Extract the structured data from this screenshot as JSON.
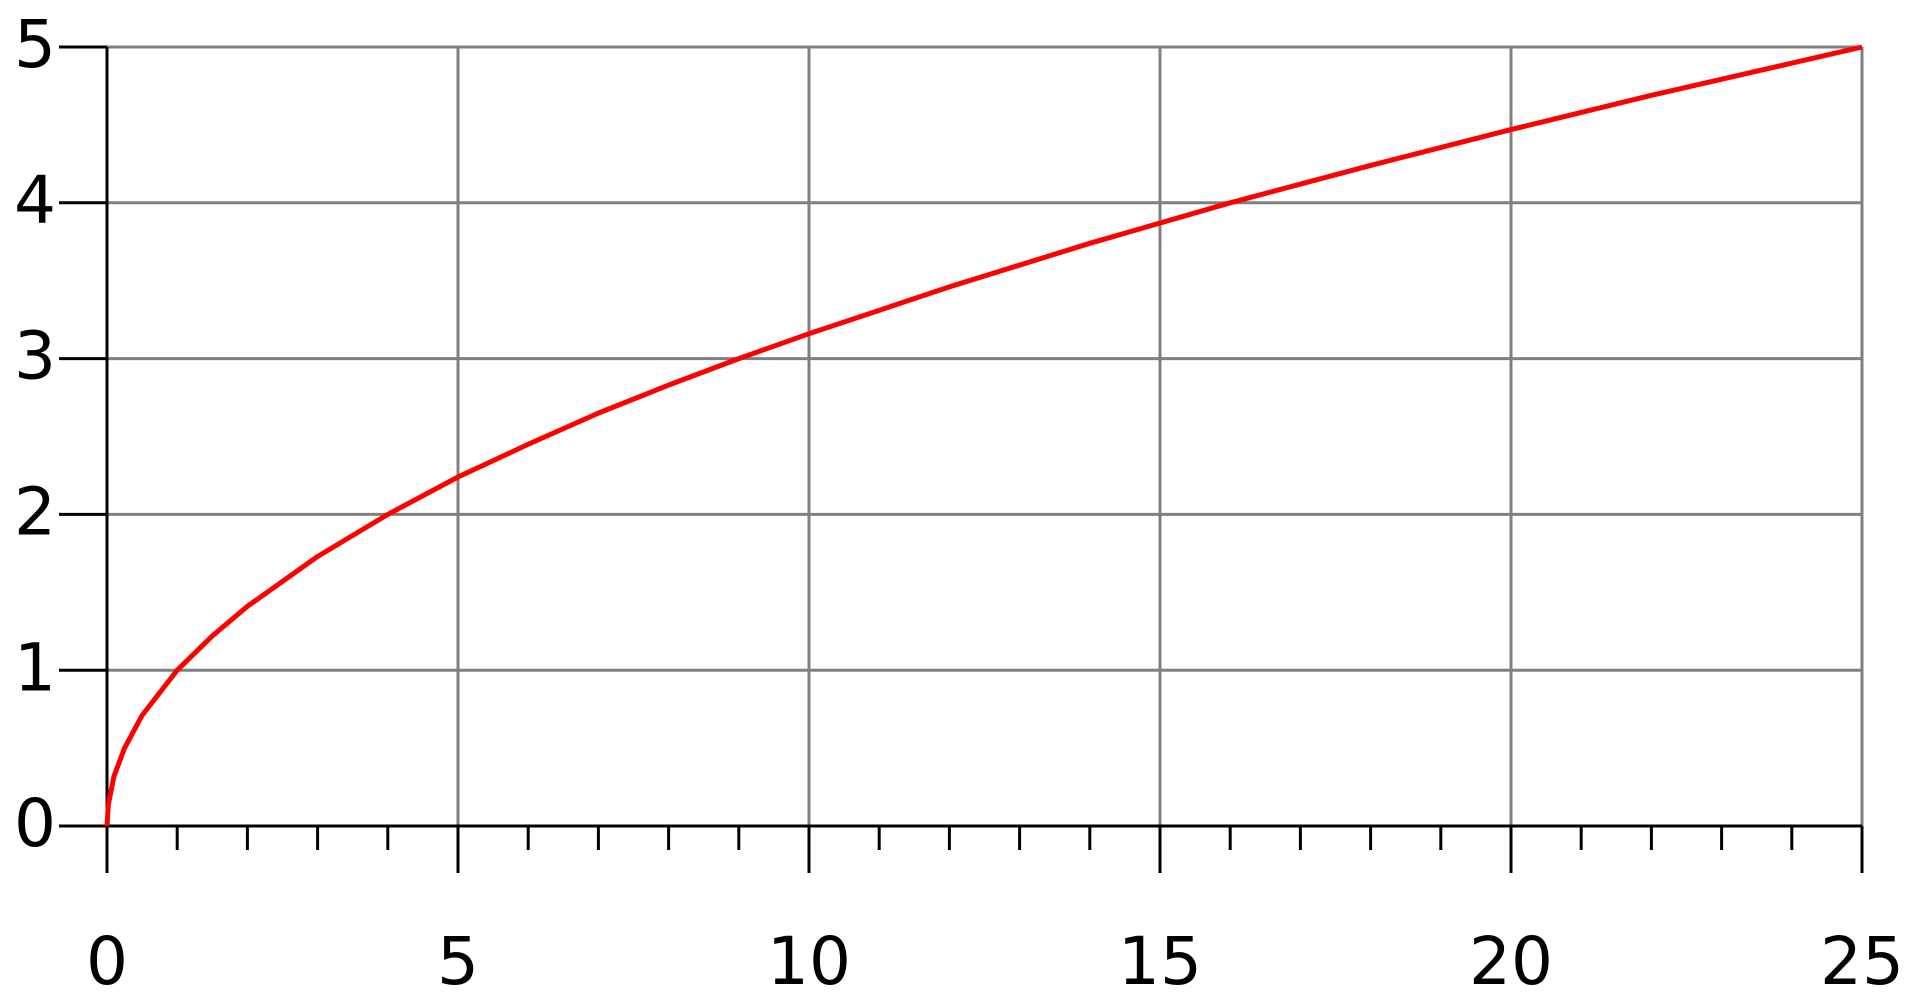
{
  "chart_data": {
    "type": "line",
    "x": [
      0,
      0.02,
      0.1,
      0.25,
      0.5,
      1,
      1.5,
      2,
      3,
      4,
      5,
      6,
      7,
      8,
      9,
      10,
      12,
      14,
      16,
      18,
      20,
      22,
      25
    ],
    "series": [
      {
        "color": "#ff0000",
        "values": [
          0,
          0.14,
          0.32,
          0.5,
          0.71,
          1,
          1.22,
          1.41,
          1.73,
          2,
          2.24,
          2.45,
          2.65,
          2.83,
          3,
          3.16,
          3.46,
          3.74,
          4,
          4.24,
          4.47,
          4.69,
          5
        ]
      }
    ],
    "xlim": [
      0,
      25
    ],
    "ylim": [
      0,
      5
    ],
    "xticks": [
      0,
      5,
      10,
      15,
      20,
      25
    ],
    "yticks": [
      0,
      1,
      2,
      3,
      4,
      5
    ],
    "xminorticks": [
      1,
      2,
      3,
      4,
      6,
      7,
      8,
      9,
      11,
      12,
      13,
      14,
      16,
      17,
      18,
      19,
      21,
      22,
      23,
      24
    ],
    "grid": true,
    "grid_color": "#808080",
    "axis_color": "#000000"
  }
}
